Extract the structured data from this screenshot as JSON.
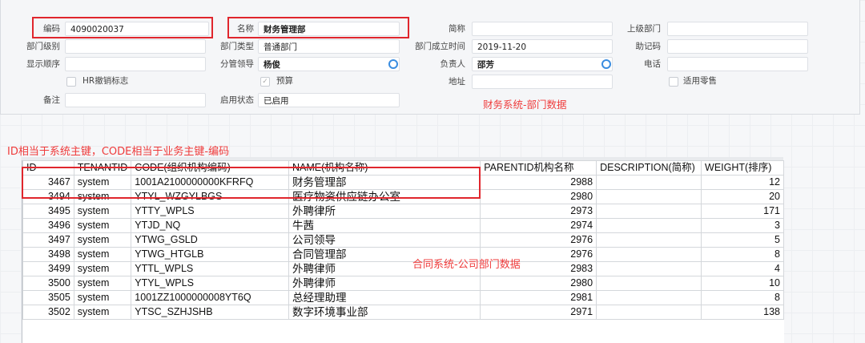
{
  "form": {
    "bianma": {
      "label": "编码",
      "value": "4090020037"
    },
    "mingcheng": {
      "label": "名称",
      "value": "财务管理部"
    },
    "jiancheng": {
      "label": "简称",
      "value": ""
    },
    "shangji": {
      "label": "上级部门",
      "value": ""
    },
    "jibie": {
      "label": "部门级别",
      "value": ""
    },
    "leixing": {
      "label": "部门类型",
      "value": "普通部门"
    },
    "chengli": {
      "label": "部门成立时间",
      "value": "2019-11-20"
    },
    "zhuji": {
      "label": "助记码",
      "value": ""
    },
    "shunxu": {
      "label": "显示顺序",
      "value": ""
    },
    "lingdao": {
      "label": "分管领导",
      "value": "杨俊"
    },
    "fuze": {
      "label": "负责人",
      "value": "邵芳"
    },
    "dianhua": {
      "label": "电话",
      "value": ""
    },
    "hr": {
      "label": "HR撤销标志"
    },
    "yusuan": {
      "label": "预算"
    },
    "dizhi": {
      "label": "地址",
      "value": ""
    },
    "lingshou": {
      "label": "适用零售"
    },
    "beizhu": {
      "label": "备注",
      "value": ""
    },
    "zhuangtai": {
      "label": "启用状态",
      "value": "已启用"
    }
  },
  "annotations": {
    "finance": "财务系统-部门数据",
    "keys": "ID相当于系统主键，CODE相当于业务主键-编码",
    "contract": "合同系统-公司部门数据"
  },
  "table": {
    "headers": [
      "ID",
      "TENANTID",
      "CODE(组织机构编码)",
      "NAME(机构名称)",
      "PARENTID机构名称",
      "DESCRIPTION(简称)",
      "WEIGHT(排序)"
    ],
    "rows": [
      [
        "3467",
        "system",
        "1001A2100000000KFRFQ",
        "财务管理部",
        "2988",
        "",
        "12"
      ],
      [
        "3494",
        "system",
        "YTYL_WZGYLBGS",
        "医疗物资供应链办公室",
        "2980",
        "",
        "20"
      ],
      [
        "3495",
        "system",
        "YTTY_WPLS",
        "外聘律所",
        "2973",
        "",
        "171"
      ],
      [
        "3496",
        "system",
        "YTJD_NQ",
        "牛茜",
        "2974",
        "",
        "3"
      ],
      [
        "3497",
        "system",
        "YTWG_GSLD",
        "公司领导",
        "2976",
        "",
        "5"
      ],
      [
        "3498",
        "system",
        "YTWG_HTGLB",
        "合同管理部",
        "2976",
        "",
        "8"
      ],
      [
        "3499",
        "system",
        "YTTL_WPLS",
        "外聘律师",
        "2983",
        "",
        "4"
      ],
      [
        "3500",
        "system",
        "YTYL_WPLS",
        "外聘律师",
        "2980",
        "",
        "10"
      ],
      [
        "3505",
        "system",
        "1001ZZ1000000008YT6Q",
        "总经理助理",
        "2981",
        "",
        "8"
      ],
      [
        "3502",
        "system",
        "YTSC_SZHJSHB",
        "数字环境事业部",
        "2971",
        "",
        "138"
      ]
    ]
  }
}
